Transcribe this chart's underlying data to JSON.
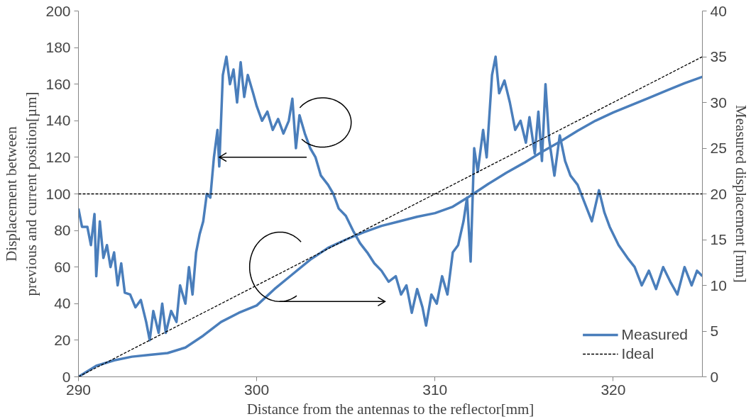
{
  "chart_data": {
    "type": "line",
    "xlabel": "Distance from the antennas to the reflector[mm]",
    "ylabel": "Displacement between\nprevious and current position[µm]",
    "y2label": "Measured displacement [mm]",
    "xlim": [
      290,
      325
    ],
    "xticks": [
      290,
      300,
      310,
      320
    ],
    "ylim": [
      0,
      200
    ],
    "yticks": [
      0,
      20,
      40,
      60,
      80,
      100,
      120,
      140,
      160,
      180,
      200
    ],
    "y2lim": [
      0,
      40
    ],
    "y2ticks": [
      0,
      5,
      10,
      15,
      20,
      25,
      30,
      35,
      40
    ],
    "grid": false,
    "legend": "bottom right",
    "ref_lines": [
      {
        "axis": "y",
        "value": 100,
        "color": "#000000",
        "line_style": "dashed"
      }
    ],
    "series": [
      {
        "color": "#4a7ebb",
        "line_style": "solid",
        "x": [
          290.0,
          290.2,
          290.5,
          290.7,
          290.9,
          291.0,
          291.2,
          291.4,
          291.6,
          291.8,
          292.0,
          292.2,
          292.4,
          292.6,
          292.9,
          293.2,
          293.5,
          293.8,
          294.0,
          294.2,
          294.5,
          294.7,
          294.9,
          295.2,
          295.5,
          295.7,
          296.0,
          296.2,
          296.4,
          296.6,
          296.8,
          297.0,
          297.2,
          297.4,
          297.6,
          297.8,
          297.9,
          298.1,
          298.3,
          298.5,
          298.7,
          298.9,
          299.1,
          299.3,
          299.5,
          299.8,
          300.0,
          300.3,
          300.6,
          300.9,
          301.2,
          301.5,
          301.8,
          302.0,
          302.2,
          302.4,
          302.7,
          303.0,
          303.3,
          303.6,
          304.0,
          304.3,
          304.6,
          305.0,
          305.4,
          305.8,
          306.2,
          306.6,
          307.0,
          307.4,
          307.8,
          308.1,
          308.4,
          308.7,
          309.0,
          309.3,
          309.5,
          309.8,
          310.1,
          310.4,
          310.7,
          311.0,
          311.3,
          311.6,
          311.8,
          312.0,
          312.2,
          312.4,
          312.7,
          312.9,
          313.2,
          313.4,
          313.6,
          313.9,
          314.2,
          314.5,
          314.8,
          315.1,
          315.3,
          315.6,
          315.8,
          316.0,
          316.2,
          316.4,
          316.7,
          317.0,
          317.3,
          317.6,
          318.0,
          318.4,
          318.8,
          319.2,
          319.5,
          319.8,
          320.3,
          320.8,
          321.2,
          321.6,
          322.0,
          322.4,
          322.8,
          323.2,
          323.6,
          324.0,
          324.4,
          324.7,
          325.0
        ],
        "values": [
          92,
          82,
          82,
          72,
          89,
          55,
          85,
          65,
          72,
          60,
          68,
          50,
          62,
          46,
          45,
          38,
          42,
          30,
          20,
          36,
          24,
          40,
          24,
          36,
          30,
          50,
          40,
          60,
          45,
          68,
          78,
          85,
          100,
          98,
          120,
          135,
          115,
          165,
          175,
          160,
          168,
          150,
          172,
          153,
          165,
          155,
          148,
          140,
          145,
          135,
          141,
          133,
          140,
          152,
          125,
          143,
          133,
          125,
          120,
          110,
          105,
          100,
          92,
          88,
          80,
          73,
          68,
          62,
          58,
          52,
          55,
          45,
          50,
          35,
          48,
          38,
          28,
          45,
          40,
          55,
          45,
          68,
          72,
          85,
          98,
          63,
          125,
          112,
          135,
          120,
          165,
          175,
          155,
          162,
          150,
          135,
          140,
          128,
          142,
          122,
          145,
          118,
          160,
          130,
          110,
          132,
          118,
          110,
          105,
          95,
          85,
          102,
          90,
          82,
          72,
          65,
          60,
          50,
          58,
          48,
          60,
          52,
          45,
          60,
          50,
          58,
          55
        ]
      },
      {
        "name": "Measured",
        "axis": "y2",
        "color": "#4a7ebb",
        "line_style": "solid",
        "x": [
          290,
          291,
          292,
          293,
          294,
          295,
          296,
          297,
          298,
          299,
          300,
          301,
          302,
          303,
          304,
          305,
          306,
          307,
          308,
          309,
          310,
          311,
          312,
          313,
          314,
          315,
          316,
          317,
          318,
          319,
          320,
          321,
          322,
          323,
          324,
          325
        ],
        "values": [
          0,
          1.2,
          1.8,
          2.2,
          2.4,
          2.6,
          3.2,
          4.5,
          6.0,
          7.0,
          7.8,
          9.6,
          11.2,
          12.8,
          14.1,
          15.0,
          15.8,
          16.5,
          17.0,
          17.5,
          17.9,
          18.6,
          19.8,
          21.1,
          22.3,
          23.4,
          24.6,
          25.7,
          26.9,
          28.0,
          28.9,
          29.7,
          30.5,
          31.3,
          32.1,
          32.8
        ]
      },
      {
        "name": "Ideal",
        "axis": "y2",
        "color": "#000000",
        "line_style": "dashed",
        "x": [
          290,
          325
        ],
        "values": [
          0,
          35
        ]
      }
    ]
  }
}
